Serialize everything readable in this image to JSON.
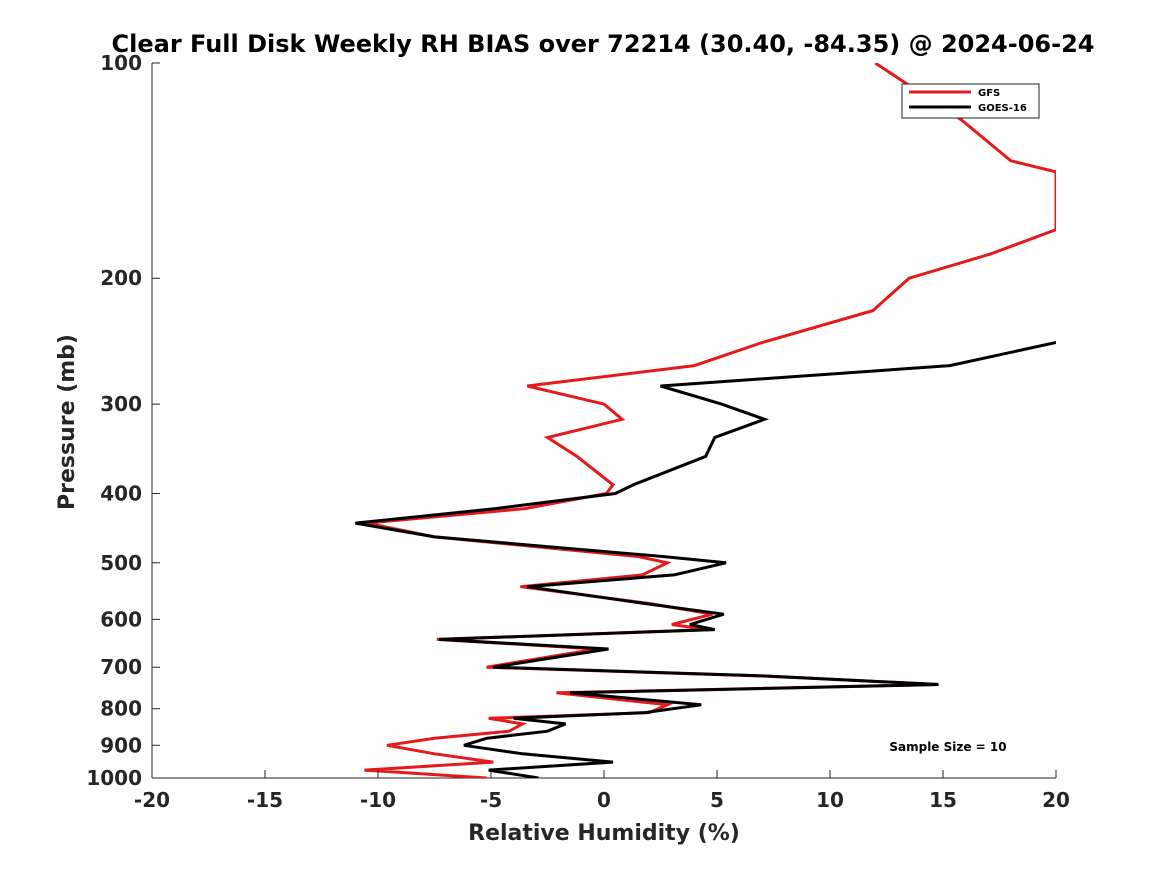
{
  "chart_data": {
    "type": "line",
    "title": "Clear Full Disk Weekly RH BIAS over 72214 (30.40, -84.35) @ 2024-06-24",
    "xlabel": "Relative Humidity (%)",
    "ylabel": "Pressure (mb)",
    "xlim": [
      -20,
      20
    ],
    "ylim": [
      100,
      1000
    ],
    "y_scale": "log",
    "y_reversed": true,
    "x_ticks": [
      -20,
      -15,
      -10,
      -5,
      0,
      5,
      10,
      15,
      20
    ],
    "x_tick_labels": [
      "-20",
      "-15",
      "-10",
      "-5",
      "0",
      "5",
      "10",
      "15",
      "20"
    ],
    "y_ticks": [
      100,
      200,
      300,
      400,
      500,
      600,
      700,
      800,
      900,
      1000
    ],
    "y_tick_labels": [
      "100",
      "200",
      "300",
      "400",
      "500",
      "600",
      "700",
      "800",
      "900",
      "1000"
    ],
    "grid": false,
    "legend_position": "top-right",
    "annotation": "Sample Size = 10",
    "series": [
      {
        "name": "GFS",
        "color": "#e41a1c",
        "points": [
          [
            12.0,
            100
          ],
          [
            15.8,
            120
          ],
          [
            18.0,
            137
          ],
          [
            20.0,
            142
          ],
          [
            20.0,
            171
          ],
          [
            17.1,
            185
          ],
          [
            13.5,
            200
          ],
          [
            11.9,
            222
          ],
          [
            7.0,
            246
          ],
          [
            4.0,
            265
          ],
          [
            -3.4,
            283
          ],
          [
            0.0,
            300
          ],
          [
            0.8,
            315
          ],
          [
            -2.5,
            334
          ],
          [
            -1.2,
            355
          ],
          [
            0.4,
            389
          ],
          [
            0.1,
            400
          ],
          [
            -3.5,
            420
          ],
          [
            -10.5,
            440
          ],
          [
            -7.5,
            460
          ],
          [
            1.5,
            490
          ],
          [
            2.8,
            500
          ],
          [
            1.7,
            520
          ],
          [
            -3.7,
            540
          ],
          [
            2.0,
            570
          ],
          [
            4.8,
            590
          ],
          [
            3.0,
            610
          ],
          [
            4.6,
            620
          ],
          [
            -7.4,
            640
          ],
          [
            -0.3,
            660
          ],
          [
            -5.2,
            700
          ],
          [
            7.0,
            720
          ],
          [
            14.8,
            740
          ],
          [
            -2.1,
            760
          ],
          [
            2.8,
            790
          ],
          [
            2.0,
            810
          ],
          [
            -5.1,
            825
          ],
          [
            -3.6,
            840
          ],
          [
            -4.2,
            860
          ],
          [
            -7.5,
            880
          ],
          [
            -9.6,
            900
          ],
          [
            -7.5,
            925
          ],
          [
            -4.9,
            950
          ],
          [
            -10.6,
            975
          ],
          [
            -5.2,
            1000
          ]
        ]
      },
      {
        "name": "GOES-16",
        "color": "#000000",
        "points": [
          [
            20.0,
            246
          ],
          [
            15.3,
            265
          ],
          [
            2.5,
            283
          ],
          [
            5.2,
            300
          ],
          [
            7.1,
            315
          ],
          [
            4.9,
            334
          ],
          [
            4.5,
            355
          ],
          [
            1.3,
            389
          ],
          [
            0.5,
            400
          ],
          [
            -4.8,
            420
          ],
          [
            -11.0,
            440
          ],
          [
            -7.5,
            460
          ],
          [
            2.6,
            490
          ],
          [
            5.4,
            500
          ],
          [
            3.1,
            520
          ],
          [
            -3.4,
            540
          ],
          [
            1.8,
            570
          ],
          [
            5.3,
            590
          ],
          [
            3.8,
            610
          ],
          [
            4.9,
            620
          ],
          [
            -7.3,
            640
          ],
          [
            0.2,
            660
          ],
          [
            -4.9,
            700
          ],
          [
            7.2,
            720
          ],
          [
            14.8,
            740
          ],
          [
            -1.5,
            760
          ],
          [
            4.3,
            790
          ],
          [
            1.8,
            810
          ],
          [
            -4.0,
            825
          ],
          [
            -1.7,
            840
          ],
          [
            -2.5,
            860
          ],
          [
            -5.2,
            880
          ],
          [
            -6.2,
            900
          ],
          [
            -3.6,
            925
          ],
          [
            0.4,
            950
          ],
          [
            -5.1,
            975
          ],
          [
            -2.9,
            1000
          ]
        ]
      }
    ]
  }
}
